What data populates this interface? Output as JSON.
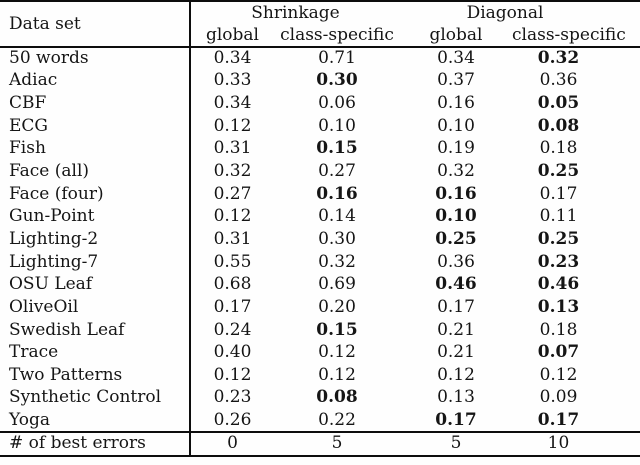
{
  "table": {
    "header": {
      "dataset_label": "Data set",
      "groups": [
        {
          "label": "Shrinkage"
        },
        {
          "label": "Diagonal"
        }
      ],
      "subheaders": [
        "global",
        "class-specific",
        "global",
        "class-specific"
      ]
    },
    "rows": [
      {
        "name": "50 words",
        "values": [
          "0.34",
          "0.71",
          "0.34",
          "0.32"
        ],
        "bold": [
          false,
          false,
          false,
          true
        ]
      },
      {
        "name": "Adiac",
        "values": [
          "0.33",
          "0.30",
          "0.37",
          "0.36"
        ],
        "bold": [
          false,
          true,
          false,
          false
        ]
      },
      {
        "name": "CBF",
        "values": [
          "0.34",
          "0.06",
          "0.16",
          "0.05"
        ],
        "bold": [
          false,
          false,
          false,
          true
        ]
      },
      {
        "name": "ECG",
        "values": [
          "0.12",
          "0.10",
          "0.10",
          "0.08"
        ],
        "bold": [
          false,
          false,
          false,
          true
        ]
      },
      {
        "name": "Fish",
        "values": [
          "0.31",
          "0.15",
          "0.19",
          "0.18"
        ],
        "bold": [
          false,
          true,
          false,
          false
        ]
      },
      {
        "name": "Face (all)",
        "values": [
          "0.32",
          "0.27",
          "0.32",
          "0.25"
        ],
        "bold": [
          false,
          false,
          false,
          true
        ]
      },
      {
        "name": "Face (four)",
        "values": [
          "0.27",
          "0.16",
          "0.16",
          "0.17"
        ],
        "bold": [
          false,
          true,
          true,
          false
        ]
      },
      {
        "name": "Gun-Point",
        "values": [
          "0.12",
          "0.14",
          "0.10",
          "0.11"
        ],
        "bold": [
          false,
          false,
          true,
          false
        ]
      },
      {
        "name": "Lighting-2",
        "values": [
          "0.31",
          "0.30",
          "0.25",
          "0.25"
        ],
        "bold": [
          false,
          false,
          true,
          true
        ]
      },
      {
        "name": "Lighting-7",
        "values": [
          "0.55",
          "0.32",
          "0.36",
          "0.23"
        ],
        "bold": [
          false,
          false,
          false,
          true
        ]
      },
      {
        "name": "OSU Leaf",
        "values": [
          "0.68",
          "0.69",
          "0.46",
          "0.46"
        ],
        "bold": [
          false,
          false,
          true,
          true
        ]
      },
      {
        "name": "OliveOil",
        "values": [
          "0.17",
          "0.20",
          "0.17",
          "0.13"
        ],
        "bold": [
          false,
          false,
          false,
          true
        ]
      },
      {
        "name": "Swedish Leaf",
        "values": [
          "0.24",
          "0.15",
          "0.21",
          "0.18"
        ],
        "bold": [
          false,
          true,
          false,
          false
        ]
      },
      {
        "name": "Trace",
        "values": [
          "0.40",
          "0.12",
          "0.21",
          "0.07"
        ],
        "bold": [
          false,
          false,
          false,
          true
        ]
      },
      {
        "name": "Two Patterns",
        "values": [
          "0.12",
          "0.12",
          "0.12",
          "0.12"
        ],
        "bold": [
          false,
          false,
          false,
          false
        ]
      },
      {
        "name": "Synthetic Control",
        "values": [
          "0.23",
          "0.08",
          "0.13",
          "0.09"
        ],
        "bold": [
          false,
          true,
          false,
          false
        ]
      },
      {
        "name": "Yoga",
        "values": [
          "0.26",
          "0.22",
          "0.17",
          "0.17"
        ],
        "bold": [
          false,
          false,
          true,
          true
        ]
      }
    ],
    "summary": {
      "label": "# of best errors",
      "values": [
        "0",
        "5",
        "5",
        "10"
      ]
    }
  },
  "colors": {
    "text": "#151515",
    "border": "#0d0d0d",
    "background": "#fefefe"
  }
}
